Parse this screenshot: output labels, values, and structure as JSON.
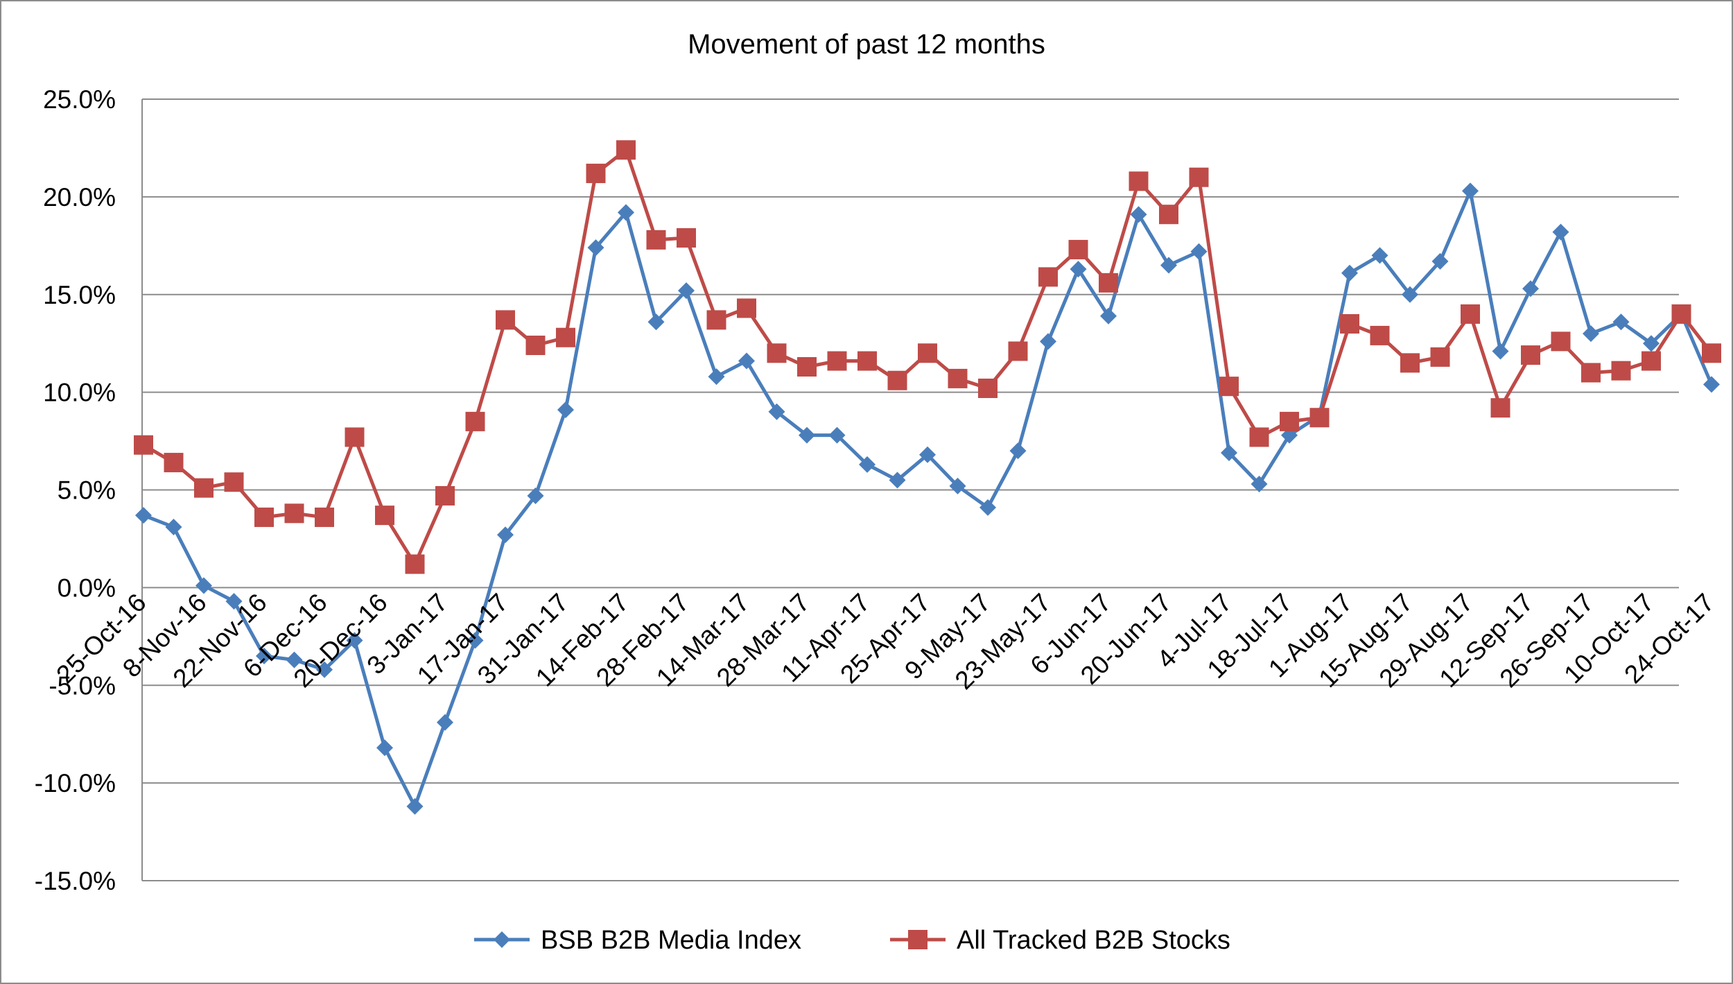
{
  "chart_data": {
    "type": "line",
    "title": "Movement of past 12 months",
    "xlabel": "",
    "ylabel": "",
    "ylim": [
      -15,
      25
    ],
    "ytick_values": [
      25,
      20,
      15,
      10,
      5,
      0,
      -5,
      -10,
      -15
    ],
    "ytick_labels": [
      "25.0%",
      "20.0%",
      "15.0%",
      "10.0%",
      "5.0%",
      "0.0%",
      "-5.0%",
      "-10.0%",
      "-15.0%"
    ],
    "x_tick_labels": [
      "25-Oct-16",
      "8-Nov-16",
      "22-Nov-16",
      "6-Dec-16",
      "20-Dec-16",
      "3-Jan-17",
      "17-Jan-17",
      "31-Jan-17",
      "14-Feb-17",
      "28-Feb-17",
      "14-Mar-17",
      "28-Mar-17",
      "11-Apr-17",
      "25-Apr-17",
      "9-May-17",
      "23-May-17",
      "6-Jun-17",
      "20-Jun-17",
      "4-Jul-17",
      "18-Jul-17",
      "1-Aug-17",
      "15-Aug-17",
      "29-Aug-17",
      "12-Sep-17",
      "26-Sep-17",
      "10-Oct-17",
      "24-Oct-17"
    ],
    "grid": true,
    "legend_position": "bottom",
    "series": [
      {
        "name": "BSB B2B Media Index",
        "color": "#4a7ebb",
        "marker": "diamond",
        "values": [
          3.7,
          3.1,
          0.1,
          -0.7,
          -3.5,
          -3.7,
          -4.2,
          -2.7,
          -8.2,
          -11.2,
          -6.9,
          -2.7,
          2.7,
          4.7,
          9.1,
          17.4,
          19.2,
          13.6,
          15.2,
          10.8,
          11.6,
          9.0,
          7.8,
          7.8,
          6.3,
          5.5,
          6.8,
          5.2,
          4.1,
          7.0,
          12.6,
          16.3,
          13.9,
          19.1,
          16.5,
          17.2,
          6.9,
          5.3,
          7.8,
          8.8,
          16.1,
          17.0,
          15.0,
          16.7,
          20.3,
          12.1,
          15.3,
          18.2,
          13.0,
          13.6,
          12.5,
          14.0,
          10.4
        ]
      },
      {
        "name": "All Tracked B2B Stocks",
        "color": "#be4b48",
        "marker": "square",
        "values": [
          7.3,
          6.4,
          5.1,
          5.4,
          3.6,
          3.8,
          3.6,
          7.7,
          3.7,
          1.2,
          4.7,
          8.5,
          13.7,
          12.4,
          12.8,
          21.2,
          22.4,
          17.8,
          17.9,
          13.7,
          14.3,
          12.0,
          11.3,
          11.6,
          11.6,
          10.6,
          12.0,
          10.7,
          10.2,
          12.1,
          15.9,
          17.3,
          15.6,
          20.8,
          19.1,
          21.0,
          10.3,
          7.7,
          8.5,
          8.7,
          13.5,
          12.9,
          11.5,
          11.8,
          14.0,
          9.2,
          11.9,
          12.6,
          11.0,
          11.1,
          11.6,
          14.0,
          12.0
        ]
      }
    ]
  }
}
